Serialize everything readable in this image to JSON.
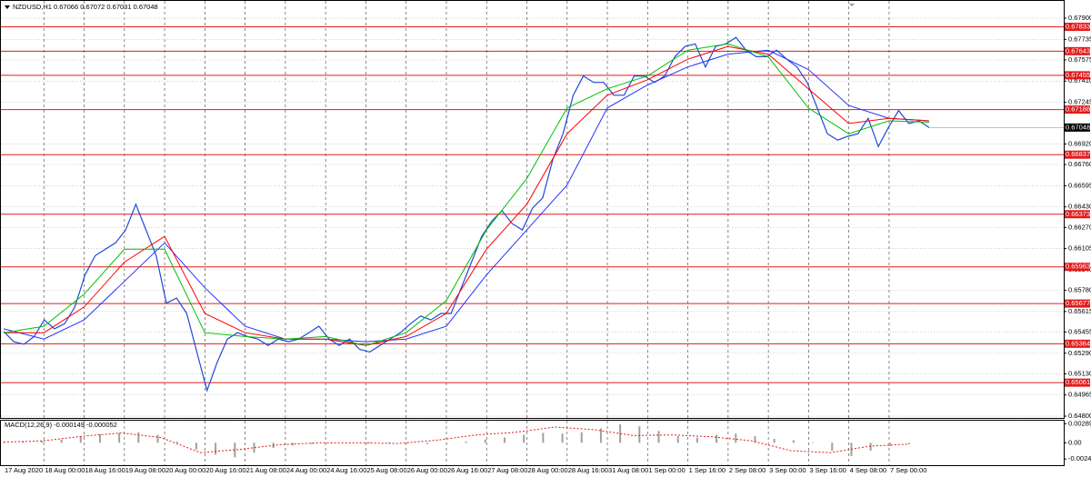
{
  "header": "NZDUSD,H1  0.67066 0.67072 0.67031 0.67048",
  "time_labels": [
    "17 Aug 2020",
    "18 Aug 00:00",
    "18 Aug 16:00",
    "19 Aug 08:00",
    "20 Aug 00:00",
    "20 Aug 16:00",
    "21 Aug 08:00",
    "24 Aug 00:00",
    "24 Aug 16:00",
    "25 Aug 08:00",
    "26 Aug 00:00",
    "26 Aug 16:00",
    "27 Aug 08:00",
    "28 Aug 00:00",
    "28 Aug 16:00",
    "31 Aug 08:00",
    "1 Sep 00:00",
    "1 Sep 16:00",
    "2 Sep 08:00",
    "3 Sep 00:00",
    "3 Sep 16:00",
    "4 Sep 08:00",
    "7 Sep 00:00"
  ],
  "chart_data": [
    {
      "type": "line",
      "ylim": [
        0.64786,
        0.67985
      ],
      "yticks": [
        {
          "value": 0.679,
          "label": "0.67900"
        },
        0.67735,
        0.67575,
        {
          "value": 0.6741,
          "label": "0.67410"
        },
        0.67245,
        {
          "value": 0.6692,
          "label": "0.66920"
        },
        {
          "value": 0.6676,
          "label": "0.66760"
        },
        0.66595,
        {
          "value": 0.6643,
          "label": "0.66430"
        },
        {
          "value": 0.6627,
          "label": "0.66270"
        },
        0.66105,
        {
          "value": 0.6594,
          "label": "0.65940"
        },
        {
          "value": 0.6578,
          "label": "0.65780"
        },
        0.65615,
        0.65455,
        {
          "value": 0.6529,
          "label": "0.65290"
        },
        {
          "value": 0.6513,
          "label": "0.65130"
        },
        0.64965,
        {
          "value": 0.648,
          "label": "0.64800"
        }
      ],
      "grid": true,
      "levels": [
        0.67833,
        0.67643,
        0.67455,
        0.67188,
        0.66837,
        0.66373,
        0.65963,
        0.65677,
        0.65364,
        0.65061
      ],
      "level_color": "#e41a1a",
      "last_price": 0.67048,
      "series": [
        {
          "color": "#1f4ad6",
          "values": [
            0.6546,
            0.6538,
            0.6536,
            0.6542,
            0.6555,
            0.6548,
            0.6552,
            0.6565,
            0.659,
            0.6605,
            0.661,
            0.6615,
            0.6625,
            0.6645,
            0.6625,
            0.6605,
            0.6568,
            0.6572,
            0.656,
            0.653,
            0.65,
            0.6522,
            0.654,
            0.6545,
            0.6542,
            0.654,
            0.6535,
            0.654,
            0.6538,
            0.654,
            0.6545,
            0.655,
            0.654,
            0.6535,
            0.654,
            0.6532,
            0.653,
            0.6535,
            0.654,
            0.6545,
            0.6552,
            0.6558,
            0.6555,
            0.656,
            0.656,
            0.658,
            0.66,
            0.662,
            0.6632,
            0.664,
            0.663,
            0.6625,
            0.6642,
            0.665,
            0.668,
            0.67,
            0.673,
            0.6745,
            0.674,
            0.674,
            0.673,
            0.673,
            0.6745,
            0.6745,
            0.674,
            0.6745,
            0.676,
            0.6768,
            0.677,
            0.6752,
            0.6768,
            0.677,
            0.6775,
            0.6765,
            0.676,
            0.676,
            0.6765,
            0.6758,
            0.6752,
            0.674,
            0.672,
            0.67,
            0.6695,
            0.6698,
            0.67,
            0.6712,
            0.669,
            0.6705,
            0.6718,
            0.6708,
            0.671,
            0.67048
          ]
        },
        {
          "color": "#2233ff",
          "values": [
            0.6548,
            0.654,
            0.6555,
            0.6585,
            0.6615,
            0.658,
            0.655,
            0.654,
            0.654,
            0.6538,
            0.654,
            0.655,
            0.659,
            0.6625,
            0.666,
            0.672,
            0.6738,
            0.6752,
            0.6762,
            0.6765,
            0.675,
            0.6722,
            0.6712,
            0.671
          ]
        },
        {
          "color": "#ff0000",
          "values": [
            0.6545,
            0.6545,
            0.6565,
            0.66,
            0.662,
            0.656,
            0.6545,
            0.654,
            0.654,
            0.6535,
            0.6542,
            0.656,
            0.661,
            0.6645,
            0.67,
            0.673,
            0.6742,
            0.6758,
            0.6768,
            0.6762,
            0.6735,
            0.6708,
            0.6712,
            0.671
          ]
        },
        {
          "color": "#00c000",
          "values": [
            0.6545,
            0.655,
            0.6575,
            0.661,
            0.661,
            0.6545,
            0.6542,
            0.654,
            0.6542,
            0.6535,
            0.6545,
            0.657,
            0.6625,
            0.6665,
            0.672,
            0.6735,
            0.6745,
            0.6765,
            0.677,
            0.676,
            0.672,
            0.67,
            0.671,
            0.6709
          ]
        }
      ]
    },
    {
      "type": "macd",
      "title": "MACD(12,26,9) -0.000149 -0.000052",
      "ylim": [
        -0.0034,
        0.0035
      ],
      "yticks": [
        0.002898,
        {
          "value": 0,
          "label": "0.00"
        },
        -0.00246
      ],
      "series": [
        {
          "color": "#a0a0a0",
          "values": [
            0.0001,
            0.0002,
            0.0003,
            0.0005,
            0.001,
            0.0013,
            0.0015,
            0.0016,
            0.0012,
            0.0002,
            -0.001,
            -0.0018,
            -0.0022,
            -0.0015,
            -0.0008,
            -0.0004,
            -0.0002,
            -0.0001,
            0,
            0.0001,
            0.0001,
            0,
            -0.0002,
            -0.0001,
            0.0002,
            0.0005,
            0.0008,
            0.0012,
            0.0015,
            0.0014,
            0.0016,
            0.0022,
            0.0028,
            0.0025,
            0.0018,
            0.001,
            0.0008,
            0.0012,
            0.0014,
            0.001,
            0.0006,
            0.0004,
            0,
            -0.0012,
            -0.002,
            -0.0012,
            -0.0005,
            -0.0002
          ]
        },
        {
          "color": "#e41a1a",
          "values": [
            0.0001,
            0.0003,
            0.001,
            0.0015,
            0.0008,
            -0.0015,
            -0.001,
            -0.0003,
            0,
            0,
            -0.0001,
            0.0004,
            0.0012,
            0.0016,
            0.0024,
            0.002,
            0.0011,
            0.0012,
            0.0009,
            0.0003,
            -0.0012,
            -0.0015,
            -0.0005,
            -0.0002
          ]
        }
      ]
    }
  ]
}
